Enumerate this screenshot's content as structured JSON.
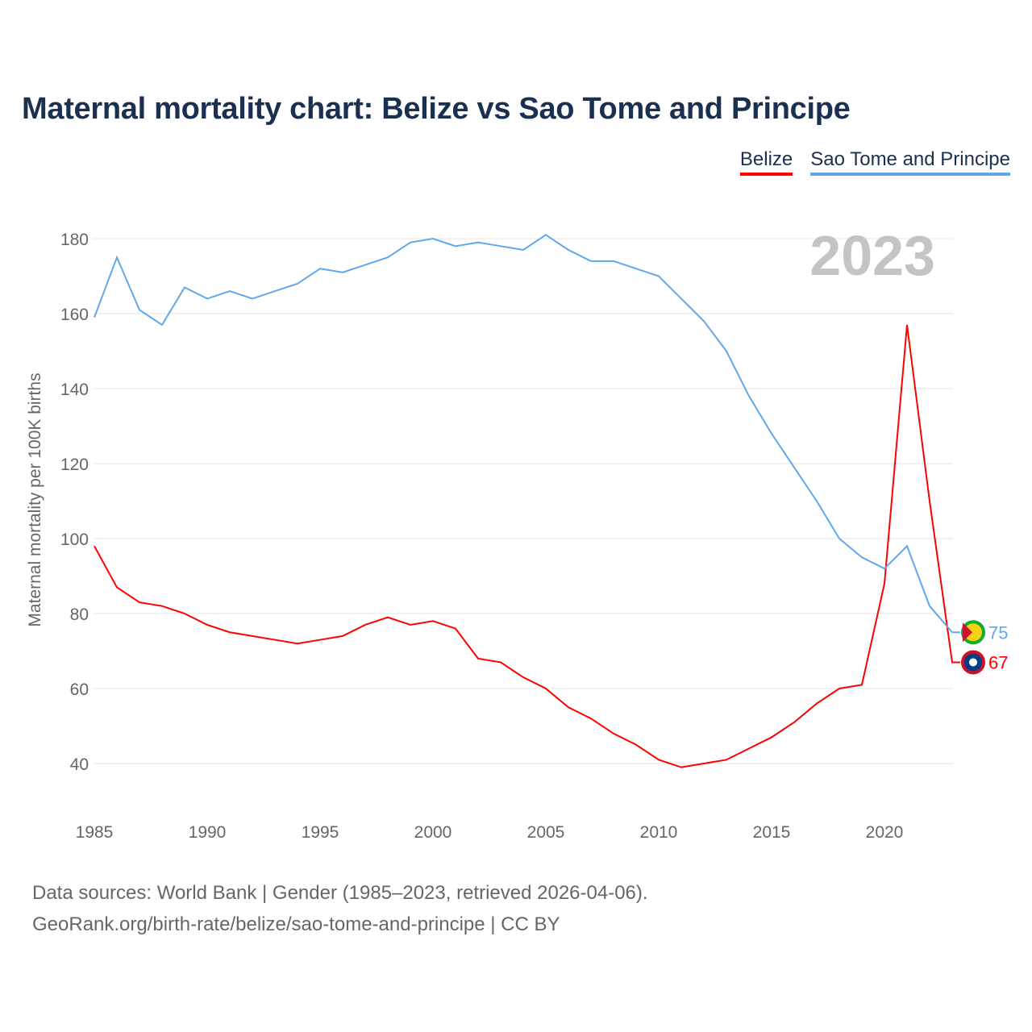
{
  "title": "Maternal mortality chart: Belize vs Sao Tome and Principe",
  "source_lines": [
    "Data sources: World Bank | Gender (1985–2023, retrieved 2026-04-06).",
    "GeoRank.org/birth-rate/belize/sao-tome-and-principe | CC BY"
  ],
  "chart_data": {
    "type": "line",
    "title": "Maternal mortality chart: Belize vs Sao Tome and Principe",
    "xlabel": "",
    "ylabel": "Maternal mortality per 100K births",
    "year_label": "2023",
    "xlim": [
      1985,
      2023
    ],
    "ylim": [
      28,
      190
    ],
    "xticks": [
      1985,
      1990,
      1995,
      2000,
      2005,
      2010,
      2015,
      2020
    ],
    "yticks": [
      40,
      60,
      80,
      100,
      120,
      140,
      160,
      180
    ],
    "grid": true,
    "legend_position": "top-right",
    "x": [
      1985,
      1986,
      1987,
      1988,
      1989,
      1990,
      1991,
      1992,
      1993,
      1994,
      1995,
      1996,
      1997,
      1998,
      1999,
      2000,
      2001,
      2002,
      2003,
      2004,
      2005,
      2006,
      2007,
      2008,
      2009,
      2010,
      2011,
      2012,
      2013,
      2014,
      2015,
      2016,
      2017,
      2018,
      2019,
      2020,
      2021,
      2022,
      2023
    ],
    "series": [
      {
        "name": "Belize",
        "color": "#ff0000",
        "end_label": "67",
        "values": [
          98,
          87,
          83,
          82,
          80,
          77,
          75,
          74,
          73,
          72,
          73,
          74,
          77,
          79,
          77,
          78,
          76,
          68,
          67,
          63,
          60,
          55,
          52,
          48,
          45,
          41,
          39,
          40,
          41,
          44,
          47,
          51,
          56,
          60,
          61,
          88,
          157,
          110,
          67
        ]
      },
      {
        "name": "Sao Tome and Principe",
        "color": "#5fa8ea",
        "end_label": "75",
        "values": [
          159,
          175,
          161,
          157,
          167,
          164,
          166,
          164,
          166,
          168,
          172,
          171,
          173,
          175,
          179,
          180,
          178,
          179,
          178,
          177,
          181,
          177,
          174,
          174,
          172,
          170,
          164,
          158,
          150,
          138,
          128,
          119,
          110,
          100,
          95,
          92,
          98,
          82,
          75
        ]
      }
    ]
  }
}
